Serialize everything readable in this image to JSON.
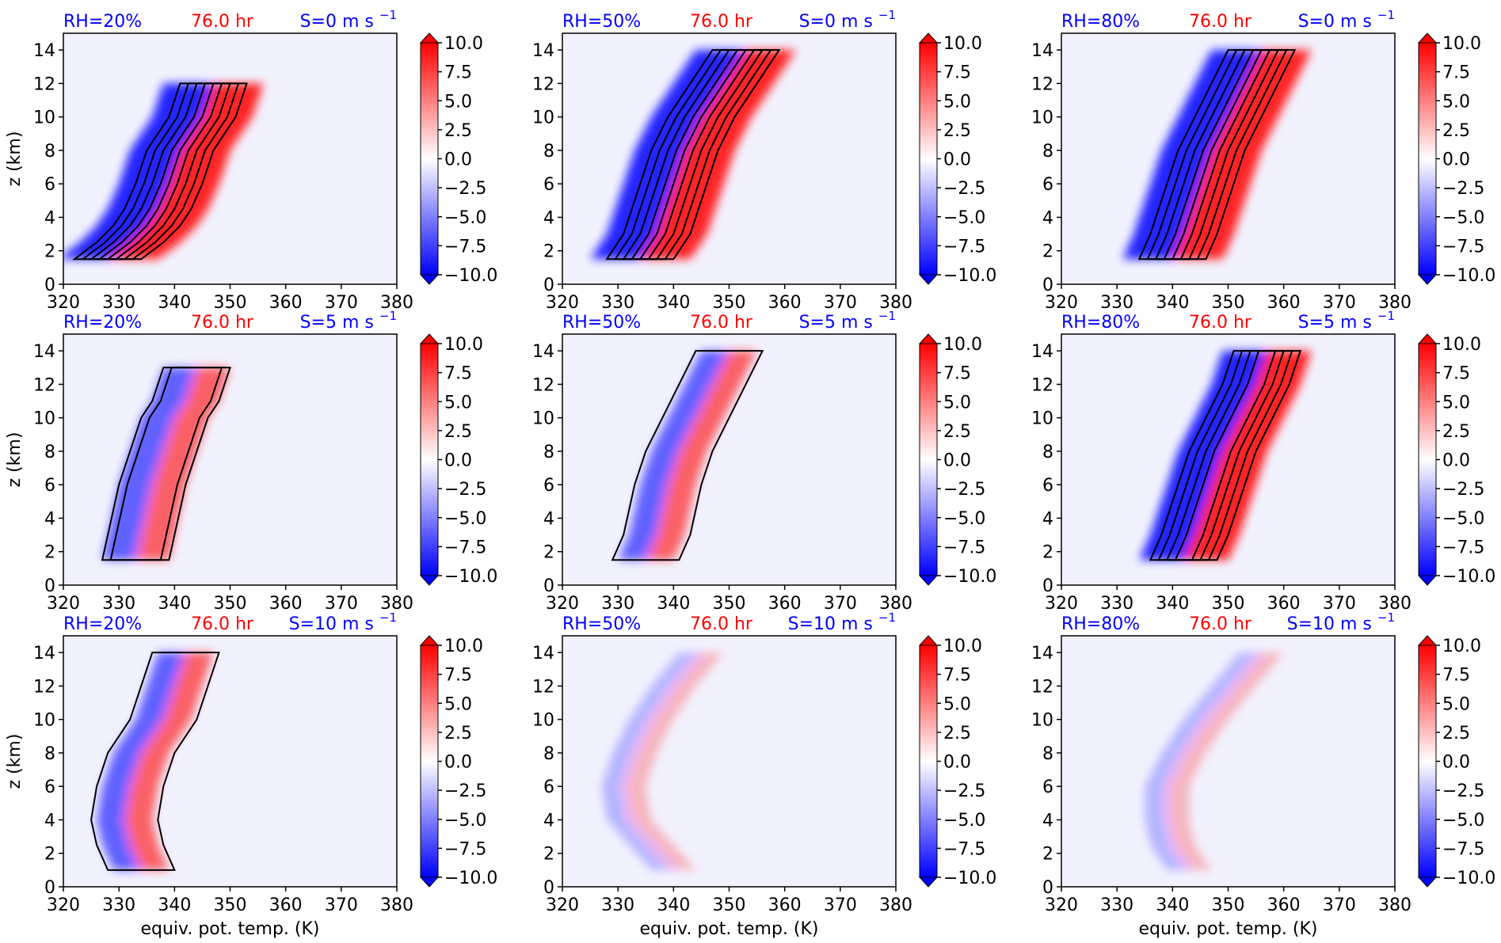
{
  "figure": {
    "colors": {
      "red": "#ff0000",
      "blue": "#0000ff",
      "background": "#f2f2ff",
      "contour": "#000000"
    },
    "colorbar_ticks": [
      "10.0",
      "7.5",
      "5.0",
      "2.5",
      "0.0",
      "−2.5",
      "−5.0",
      "−7.5",
      "−10.0"
    ],
    "colormap": "bwr",
    "x_ticks": [
      "320",
      "330",
      "340",
      "350",
      "360",
      "370",
      "380"
    ],
    "y_ticks": [
      "0",
      "2",
      "4",
      "6",
      "8",
      "10",
      "12",
      "14"
    ],
    "xlabel": "equiv. pot. temp. (K)",
    "ylabel": "z (km)",
    "time_label": "76.0 hr"
  },
  "chart_data": [
    {
      "type": "heatmap",
      "rh_label": "RH=20%",
      "time_label": "76.0 hr",
      "shear_label": "S=0 m s",
      "shear_exp": "−1",
      "xlim": [
        320,
        380
      ],
      "ylim": [
        0,
        15
      ],
      "colorbar_range": [
        -10,
        10
      ],
      "contour_count": 5,
      "structure": [
        [
          1.5,
          328
        ],
        [
          2.5,
          332
        ],
        [
          3.5,
          335
        ],
        [
          4.5,
          337
        ],
        [
          6,
          339
        ],
        [
          8,
          341
        ],
        [
          10,
          345
        ],
        [
          12,
          347
        ]
      ]
    },
    {
      "type": "heatmap",
      "rh_label": "RH=50%",
      "time_label": "76.0 hr",
      "shear_label": "S=0 m s",
      "shear_exp": "−1",
      "xlim": [
        320,
        380
      ],
      "ylim": [
        0,
        15
      ],
      "colorbar_range": [
        -10,
        10
      ],
      "contour_count": 5,
      "structure": [
        [
          1.5,
          334
        ],
        [
          3,
          337
        ],
        [
          4,
          338
        ],
        [
          6,
          340
        ],
        [
          8,
          342
        ],
        [
          10,
          345
        ],
        [
          12,
          349
        ],
        [
          14,
          353
        ]
      ]
    },
    {
      "type": "heatmap",
      "rh_label": "RH=80%",
      "time_label": "76.0 hr",
      "shear_label": "S=0 m s",
      "shear_exp": "−1",
      "xlim": [
        320,
        380
      ],
      "ylim": [
        0,
        15
      ],
      "colorbar_range": [
        -10,
        10
      ],
      "contour_count": 5,
      "structure": [
        [
          1.5,
          340
        ],
        [
          3,
          342
        ],
        [
          4,
          343
        ],
        [
          6,
          345
        ],
        [
          8,
          347
        ],
        [
          10,
          350
        ],
        [
          12,
          353
        ],
        [
          14,
          356
        ]
      ]
    },
    {
      "type": "heatmap",
      "rh_label": "RH=20%",
      "time_label": "76.0 hr",
      "shear_label": "S=5 m s",
      "shear_exp": "−1",
      "xlim": [
        320,
        380
      ],
      "ylim": [
        0,
        15
      ],
      "colorbar_range": [
        -10,
        10
      ],
      "contour_count": 2,
      "structure": [
        [
          1.5,
          333
        ],
        [
          3,
          334
        ],
        [
          4.5,
          335
        ],
        [
          6,
          336
        ],
        [
          8,
          338
        ],
        [
          10,
          340
        ],
        [
          11,
          342
        ],
        [
          13,
          344
        ]
      ]
    },
    {
      "type": "heatmap",
      "rh_label": "RH=50%",
      "time_label": "76.0 hr",
      "shear_label": "S=5 m s",
      "shear_exp": "−1",
      "xlim": [
        320,
        380
      ],
      "ylim": [
        0,
        15
      ],
      "colorbar_range": [
        -10,
        10
      ],
      "contour_count": 1,
      "structure": [
        [
          1.5,
          335
        ],
        [
          3,
          337
        ],
        [
          4.5,
          338
        ],
        [
          6,
          339
        ],
        [
          8,
          341
        ],
        [
          10,
          344
        ],
        [
          12,
          347
        ],
        [
          14,
          350
        ]
      ]
    },
    {
      "type": "heatmap",
      "rh_label": "RH=80%",
      "time_label": "76.0 hr",
      "shear_label": "S=5 m s",
      "shear_exp": "−1",
      "xlim": [
        320,
        380
      ],
      "ylim": [
        0,
        15
      ],
      "colorbar_range": [
        -10,
        10
      ],
      "contour_count": 4,
      "structure": [
        [
          1.5,
          342
        ],
        [
          3,
          344
        ],
        [
          4,
          345
        ],
        [
          6,
          347
        ],
        [
          8,
          349
        ],
        [
          10,
          352
        ],
        [
          12,
          355
        ],
        [
          14,
          357
        ]
      ]
    },
    {
      "type": "heatmap",
      "rh_label": "RH=20%",
      "time_label": "76.0 hr",
      "shear_label": "S=10 m s",
      "shear_exp": "−1",
      "xlim": [
        320,
        380
      ],
      "ylim": [
        0,
        15
      ],
      "colorbar_range": [
        -10,
        10
      ],
      "contour_count": 1,
      "structure": [
        [
          1,
          334
        ],
        [
          2.5,
          332
        ],
        [
          4,
          331
        ],
        [
          6,
          332
        ],
        [
          8,
          334
        ],
        [
          10,
          338
        ],
        [
          12,
          340
        ],
        [
          14,
          342
        ]
      ]
    },
    {
      "type": "heatmap",
      "rh_label": "RH=50%",
      "time_label": "76.0 hr",
      "shear_label": "S=10 m s",
      "shear_exp": "−1",
      "xlim": [
        320,
        380
      ],
      "ylim": [
        0,
        15
      ],
      "colorbar_range": [
        -10,
        10
      ],
      "contour_count": 0,
      "structure": [
        [
          1,
          340
        ],
        [
          2.5,
          336
        ],
        [
          4,
          332
        ],
        [
          6,
          331
        ],
        [
          8,
          333
        ],
        [
          10,
          336
        ],
        [
          12,
          340
        ],
        [
          14,
          345
        ]
      ]
    },
    {
      "type": "heatmap",
      "rh_label": "RH=80%",
      "time_label": "76.0 hr",
      "shear_label": "S=10 m s",
      "shear_exp": "−1",
      "xlim": [
        320,
        380
      ],
      "ylim": [
        0,
        15
      ],
      "colorbar_range": [
        -10,
        10
      ],
      "contour_count": 0,
      "structure": [
        [
          1,
          343
        ],
        [
          2.5,
          340
        ],
        [
          4,
          339
        ],
        [
          6,
          339
        ],
        [
          8,
          342
        ],
        [
          10,
          346
        ],
        [
          12,
          351
        ],
        [
          14,
          356
        ]
      ]
    }
  ]
}
